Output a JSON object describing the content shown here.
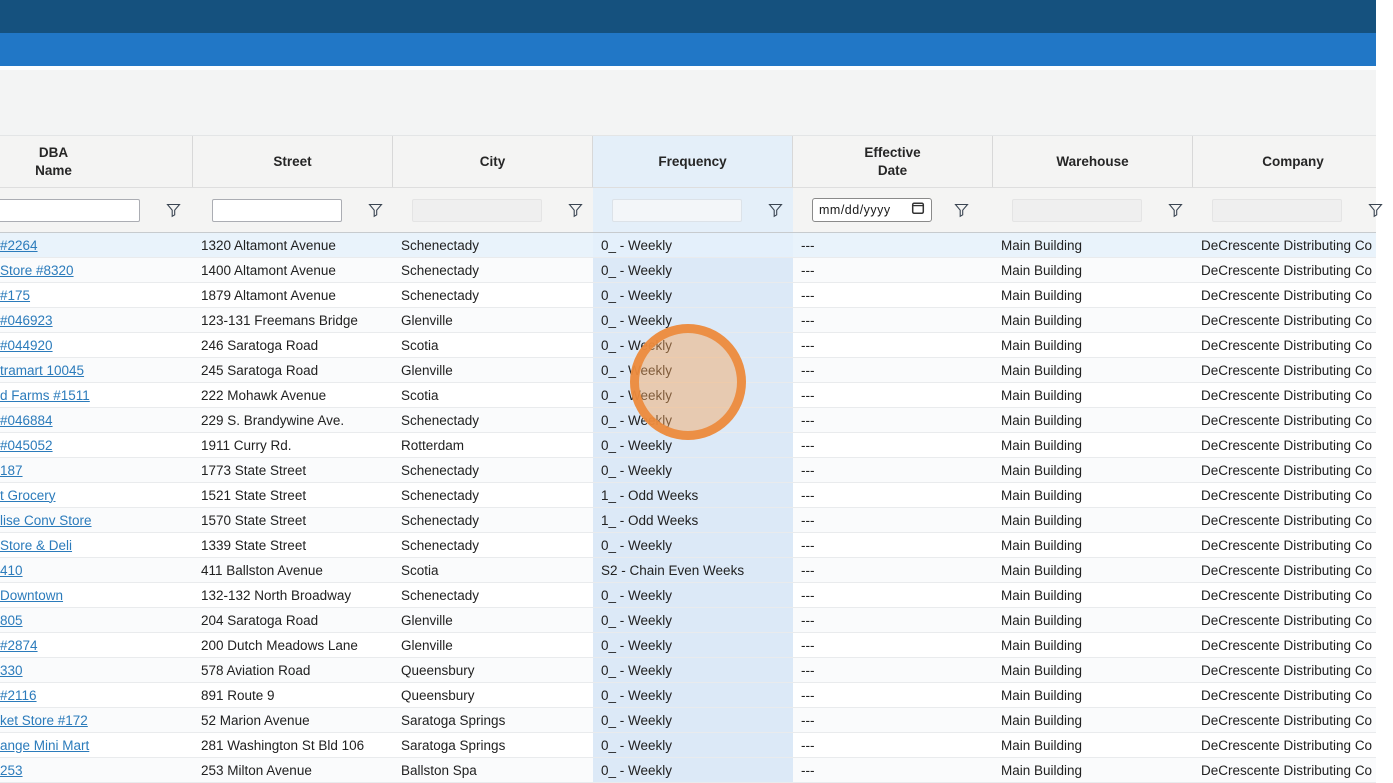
{
  "chrome": {
    "topbar_dark_color": "#15517E",
    "topbar_blue_color": "#2177C6"
  },
  "table": {
    "columns": [
      {
        "id": "dba",
        "label": "DBA\nName",
        "filter": "text",
        "filter_enabled": true,
        "highlighted": false
      },
      {
        "id": "street",
        "label": "Street",
        "filter": "text",
        "filter_enabled": true,
        "highlighted": false
      },
      {
        "id": "city",
        "label": "City",
        "filter": "text",
        "filter_enabled": false,
        "highlighted": false
      },
      {
        "id": "frequency",
        "label": "Frequency",
        "filter": "text",
        "filter_enabled": false,
        "highlighted": true
      },
      {
        "id": "effective_date",
        "label": "Effective\nDate",
        "filter": "date",
        "filter_enabled": true,
        "highlighted": false,
        "date_placeholder": "mm/dd/yyyy"
      },
      {
        "id": "warehouse",
        "label": "Warehouse",
        "filter": "text",
        "filter_enabled": false,
        "highlighted": false
      },
      {
        "id": "company",
        "label": "Company",
        "filter": "text",
        "filter_enabled": false,
        "highlighted": false
      }
    ],
    "filter_icon": "funnel-icon",
    "date_filter_icon": "calendar-icon",
    "rows": [
      {
        "dba": "#2264",
        "street": "1320 Altamont Avenue",
        "city": "Schenectady",
        "frequency": "0_ - Weekly",
        "effective_date": "---",
        "warehouse": "Main Building",
        "company": "DeCrescente Distributing Co"
      },
      {
        "dba": "Store #8320",
        "street": "1400 Altamont Avenue",
        "city": "Schenectady",
        "frequency": "0_ - Weekly",
        "effective_date": "---",
        "warehouse": "Main Building",
        "company": "DeCrescente Distributing Co"
      },
      {
        "dba": "#175",
        "street": "1879 Altamont Avenue",
        "city": "Schenectady",
        "frequency": "0_ - Weekly",
        "effective_date": "---",
        "warehouse": "Main Building",
        "company": "DeCrescente Distributing Co"
      },
      {
        "dba": "#046923",
        "street": "123-131 Freemans Bridge",
        "city": "Glenville",
        "frequency": "0_ - Weekly",
        "effective_date": "---",
        "warehouse": "Main Building",
        "company": "DeCrescente Distributing Co"
      },
      {
        "dba": "#044920",
        "street": "246 Saratoga Road",
        "city": "Scotia",
        "frequency": "0_ - Weekly",
        "effective_date": "---",
        "warehouse": "Main Building",
        "company": "DeCrescente Distributing Co"
      },
      {
        "dba": "tramart 10045",
        "street": "245 Saratoga Road",
        "city": "Glenville",
        "frequency": "0_ - Weekly",
        "effective_date": "---",
        "warehouse": "Main Building",
        "company": "DeCrescente Distributing Co"
      },
      {
        "dba": "d Farms #1511",
        "street": "222 Mohawk Avenue",
        "city": "Scotia",
        "frequency": "0_ - Weekly",
        "effective_date": "---",
        "warehouse": "Main Building",
        "company": "DeCrescente Distributing Co"
      },
      {
        "dba": "#046884",
        "street": "229 S. Brandywine Ave.",
        "city": "Schenectady",
        "frequency": "0_ - Weekly",
        "effective_date": "---",
        "warehouse": "Main Building",
        "company": "DeCrescente Distributing Co"
      },
      {
        "dba": "#045052",
        "street": "1911 Curry Rd.",
        "city": "Rotterdam",
        "frequency": "0_ - Weekly",
        "effective_date": "---",
        "warehouse": "Main Building",
        "company": "DeCrescente Distributing Co"
      },
      {
        "dba": "187",
        "street": "1773 State Street",
        "city": "Schenectady",
        "frequency": "0_ - Weekly",
        "effective_date": "---",
        "warehouse": "Main Building",
        "company": "DeCrescente Distributing Co"
      },
      {
        "dba": "t Grocery",
        "street": "1521 State Street",
        "city": "Schenectady",
        "frequency": "1_ - Odd Weeks",
        "effective_date": "---",
        "warehouse": "Main Building",
        "company": "DeCrescente Distributing Co"
      },
      {
        "dba": "lise Conv Store",
        "street": "1570 State Street",
        "city": "Schenectady",
        "frequency": "1_ - Odd Weeks",
        "effective_date": "---",
        "warehouse": "Main Building",
        "company": "DeCrescente Distributing Co"
      },
      {
        "dba": "Store & Deli",
        "street": "1339 State Street",
        "city": "Schenectady",
        "frequency": "0_ - Weekly",
        "effective_date": "---",
        "warehouse": "Main Building",
        "company": "DeCrescente Distributing Co"
      },
      {
        "dba": "410",
        "street": "411 Ballston Avenue",
        "city": "Scotia",
        "frequency": "S2 - Chain Even Weeks",
        "effective_date": "---",
        "warehouse": "Main Building",
        "company": "DeCrescente Distributing Co"
      },
      {
        "dba": "Downtown",
        "street": "132-132 North Broadway",
        "city": "Schenectady",
        "frequency": "0_ - Weekly",
        "effective_date": "---",
        "warehouse": "Main Building",
        "company": "DeCrescente Distributing Co"
      },
      {
        "dba": "805",
        "street": "204 Saratoga Road",
        "city": "Glenville",
        "frequency": "0_ - Weekly",
        "effective_date": "---",
        "warehouse": "Main Building",
        "company": "DeCrescente Distributing Co"
      },
      {
        "dba": "#2874",
        "street": "200 Dutch Meadows Lane",
        "city": "Glenville",
        "frequency": "0_ - Weekly",
        "effective_date": "---",
        "warehouse": "Main Building",
        "company": "DeCrescente Distributing Co"
      },
      {
        "dba": "330",
        "street": "578 Aviation Road",
        "city": "Queensbury",
        "frequency": "0_ - Weekly",
        "effective_date": "---",
        "warehouse": "Main Building",
        "company": "DeCrescente Distributing Co"
      },
      {
        "dba": "#2116",
        "street": "891 Route 9",
        "city": "Queensbury",
        "frequency": "0_ - Weekly",
        "effective_date": "---",
        "warehouse": "Main Building",
        "company": "DeCrescente Distributing Co"
      },
      {
        "dba": "ket Store #172",
        "street": "52 Marion Avenue",
        "city": "Saratoga Springs",
        "frequency": "0_ - Weekly",
        "effective_date": "---",
        "warehouse": "Main Building",
        "company": "DeCrescente Distributing Co"
      },
      {
        "dba": "ange Mini Mart",
        "street": "281 Washington St Bld 106",
        "city": "Saratoga Springs",
        "frequency": "0_ - Weekly",
        "effective_date": "---",
        "warehouse": "Main Building",
        "company": "DeCrescente Distributing Co"
      },
      {
        "dba": "253",
        "street": "253 Milton Avenue",
        "city": "Ballston Spa",
        "frequency": "0_ - Weekly",
        "effective_date": "---",
        "warehouse": "Main Building",
        "company": "DeCrescente Distributing Co"
      }
    ],
    "selected_row_index": 0
  },
  "annotation": {
    "type": "click-highlight-circle",
    "target": "frequency-filter",
    "border_color": "#EC8A3C",
    "fill_color": "rgba(243,164,92,0.45)"
  }
}
